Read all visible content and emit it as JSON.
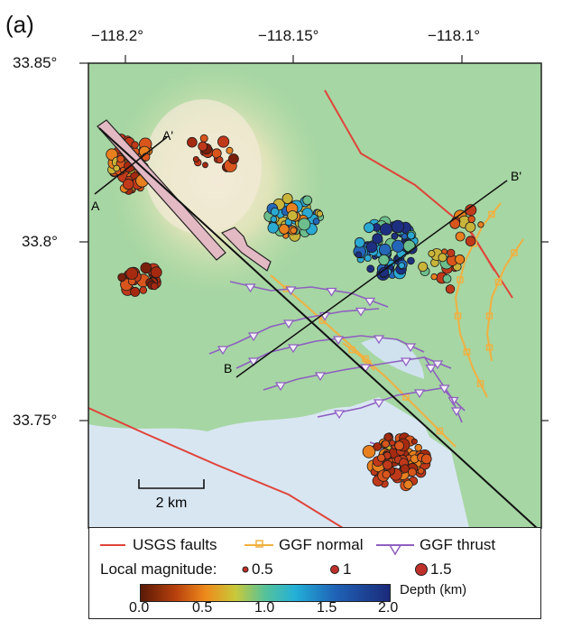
{
  "panel_label": "(a)",
  "axes": {
    "lon_ticks": [
      "−118.2°",
      "−118.15°",
      "−118.1°"
    ],
    "lat_ticks": [
      "33.85°",
      "33.8°",
      "33.75°"
    ]
  },
  "profiles": {
    "a_start": "A",
    "a_end": "A'",
    "b_start": "B",
    "b_end": "B'"
  },
  "scale_bar": "2 km",
  "legend": {
    "usgs_faults": "USGS faults",
    "ggf_normal": "GGF normal",
    "ggf_thrust": "GGF thrust",
    "magnitude_title": "Local magnitude:",
    "magnitudes": [
      "0.5",
      "1",
      "1.5"
    ],
    "depth_title": "Depth (km)",
    "depth_ticks": [
      "0.0",
      "0.5",
      "1.0",
      "1.5",
      "2.0"
    ]
  },
  "colors": {
    "usgs_fault": "#e0443a",
    "ggf_normal": "#f0b040",
    "ggf_thrust": "#8e5fc0",
    "water": "#d8e6f2",
    "land": "#a6d6a3"
  }
}
